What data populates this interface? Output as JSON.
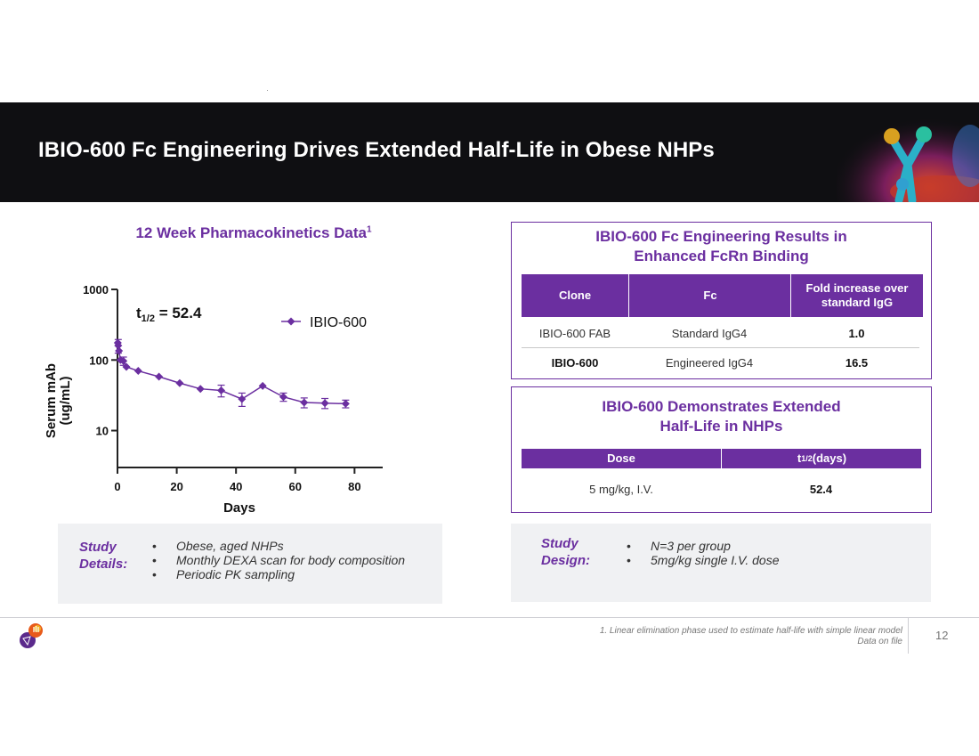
{
  "header": {
    "title": "IBIO-600 Fc Engineering Drives Extended Half-Life in Obese NHPs"
  },
  "left_panel": {
    "title": "12 Week Pharmacokinetics Data",
    "title_superscript": "1",
    "half_life_symbol": "t",
    "half_life_subscript": "1/2",
    "half_life_text": " = 52.4"
  },
  "chart_data": {
    "type": "line",
    "title": "12 Week Pharmacokinetics Data",
    "xlabel": "Days",
    "ylabel": "Serum mAb (ug/mL)",
    "ylabel_lines": [
      "Serum mAb",
      "(ug/mL)"
    ],
    "yscale": "log",
    "xlim": [
      0,
      85
    ],
    "ylim": [
      3,
      1000
    ],
    "xticks": [
      0,
      20,
      40,
      60,
      80
    ],
    "xtick_labels": [
      "0",
      "20",
      "40",
      "60",
      "80"
    ],
    "yticks": [
      10,
      100,
      1000
    ],
    "ytick_labels": [
      "10",
      "100",
      "1000"
    ],
    "legend": "top-right",
    "series": [
      {
        "name": "IBIO-600",
        "color": "#6b2fa0",
        "marker": "diamond",
        "x": [
          0.1,
          0.25,
          0.5,
          1,
          2,
          3,
          7,
          14,
          21,
          28,
          35,
          42,
          49,
          56,
          63,
          70,
          77
        ],
        "y": [
          175,
          160,
          135,
          100,
          97,
          80,
          70,
          58,
          47,
          39,
          37,
          28,
          43,
          30,
          25,
          24.5,
          24
        ],
        "err": [
          0,
          35,
          0,
          0,
          13,
          0,
          0,
          0,
          0,
          0,
          7,
          6,
          0,
          4,
          4,
          4,
          3
        ]
      }
    ]
  },
  "fcrn_box": {
    "title_line1": "IBIO-600 Fc Engineering Results in",
    "title_line2": "Enhanced FcRn Binding",
    "headers": [
      "Clone",
      "Fc",
      "Fold increase over standard IgG"
    ],
    "rows": [
      [
        "IBIO-600 FAB",
        "Standard IgG4",
        "1.0"
      ],
      [
        "IBIO-600",
        "Engineered IgG4",
        "16.5"
      ]
    ]
  },
  "halflife_box": {
    "title_line1": "IBIO-600 Demonstrates Extended",
    "title_line2": "Half-Life in NHPs",
    "header_dose": "Dose",
    "header_t_symbol": "t",
    "header_t_subscript": "1/2",
    "header_t_suffix": " (days)",
    "dose_value": "5 mg/kg, I.V.",
    "t_value": "52.4"
  },
  "study_details": {
    "label_line1": "Study",
    "label_line2": "Details:",
    "items": [
      "Obese, aged NHPs",
      "Monthly DEXA scan for body composition",
      "Periodic PK sampling"
    ]
  },
  "study_design": {
    "label_line1": "Study",
    "label_line2": "Design:",
    "items": [
      "N=3 per group",
      "5mg/kg single I.V. dose"
    ]
  },
  "footer": {
    "footnote_line1": "1.   Linear elimination phase used to estimate half-life with simple linear model",
    "footnote_line2": "Data on file",
    "page_number": "12"
  },
  "colors": {
    "accent": "#6b2fa0",
    "banner": "#0f0f12",
    "panel": "#f0f1f3"
  }
}
